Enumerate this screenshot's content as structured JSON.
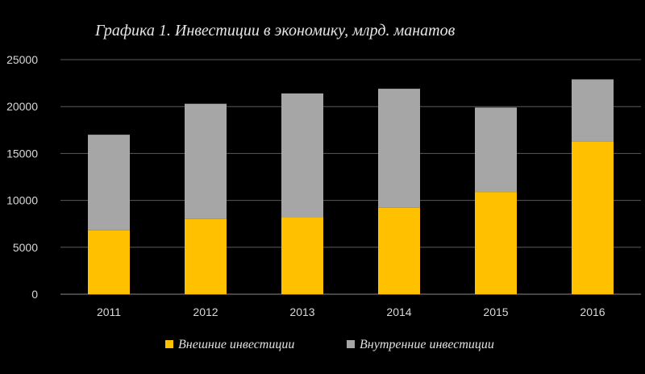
{
  "chart_data": {
    "type": "bar",
    "stacked": true,
    "title": "Графика 1. Инвестиции в экономику, млрд. манатов",
    "categories": [
      "2011",
      "2012",
      "2013",
      "2014",
      "2015",
      "2016"
    ],
    "series": [
      {
        "name": "Внешние инвестиции",
        "color": "#ffc000",
        "values": [
          6800,
          8000,
          8200,
          9200,
          10900,
          16300
        ]
      },
      {
        "name": "Внутренние инвестиции",
        "color": "#a6a6a6",
        "values": [
          10200,
          12300,
          13200,
          12700,
          9000,
          6600
        ]
      }
    ],
    "ylim": [
      0,
      25000
    ],
    "yticks": [
      0,
      5000,
      10000,
      15000,
      20000,
      25000
    ],
    "grid": true,
    "legend_position": "bottom"
  }
}
